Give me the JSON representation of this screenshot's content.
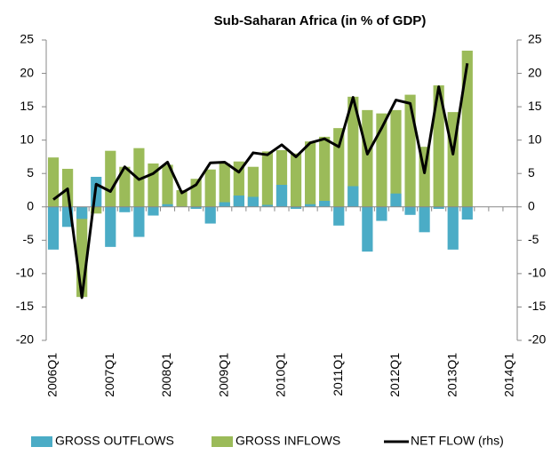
{
  "chart_data": {
    "type": "bar",
    "title": "Sub-Saharan Africa (in % of GDP)",
    "categories": [
      "2006Q1",
      null,
      null,
      null,
      "2007Q1",
      null,
      null,
      null,
      "2008Q1",
      null,
      null,
      null,
      "2009Q1",
      null,
      null,
      null,
      "2010Q1",
      null,
      null,
      null,
      "2011Q1",
      null,
      null,
      null,
      "2012Q1",
      null,
      null,
      null,
      "2013Q1",
      null,
      null,
      null,
      "2014Q1"
    ],
    "series": [
      {
        "name": "GROSS OUTFLOWS",
        "color": "#4bacc6",
        "values": [
          -6.4,
          -3.0,
          -1.8,
          4.5,
          -6.0,
          -0.8,
          -4.5,
          -1.3,
          0.4,
          0,
          -0.3,
          -2.5,
          0.7,
          1.7,
          1.5,
          0.3,
          3.3,
          -0.3,
          0.4,
          0.9,
          -2.8,
          3.1,
          -6.7,
          -2.1,
          2.0,
          -1.2,
          -3.8,
          -0.3,
          -6.4,
          -1.9,
          null,
          null,
          null
        ]
      },
      {
        "name": "GROSS INFLOWS",
        "color": "#9bbb59",
        "values": [
          7.4,
          5.7,
          -13.5,
          -1.0,
          8.4,
          6.0,
          8.8,
          6.5,
          6.3,
          2.5,
          4.2,
          5.6,
          6.5,
          6.8,
          6.0,
          8.3,
          8.5,
          8.0,
          9.8,
          10.5,
          11.8,
          16.5,
          14.5,
          14.0,
          14.5,
          16.8,
          9.0,
          18.2,
          14.2,
          23.4,
          null,
          null,
          null
        ]
      },
      {
        "name": "NET FLOW (rhs)",
        "color": "#000000",
        "axis": "y2",
        "values": [
          1.1,
          2.7,
          -13.6,
          3.4,
          2.3,
          6.0,
          4.1,
          5.0,
          6.7,
          2.1,
          3.3,
          6.6,
          6.7,
          5.2,
          8.1,
          7.8,
          9.3,
          7.5,
          9.6,
          10.2,
          9.0,
          16.4,
          7.9,
          11.8,
          16.0,
          15.5,
          5.1,
          18.0,
          7.9,
          21.5,
          null,
          null,
          null
        ]
      }
    ],
    "ylim": [
      -20,
      25
    ],
    "yticks": [
      -20,
      -15,
      -10,
      -5,
      0,
      5,
      10,
      15,
      20,
      25
    ],
    "y2lim": [
      -20,
      25
    ],
    "y2ticks": [
      -20,
      -15,
      -10,
      -5,
      0,
      5,
      10,
      15,
      20,
      25
    ],
    "grid": false,
    "legend": "bottom"
  }
}
